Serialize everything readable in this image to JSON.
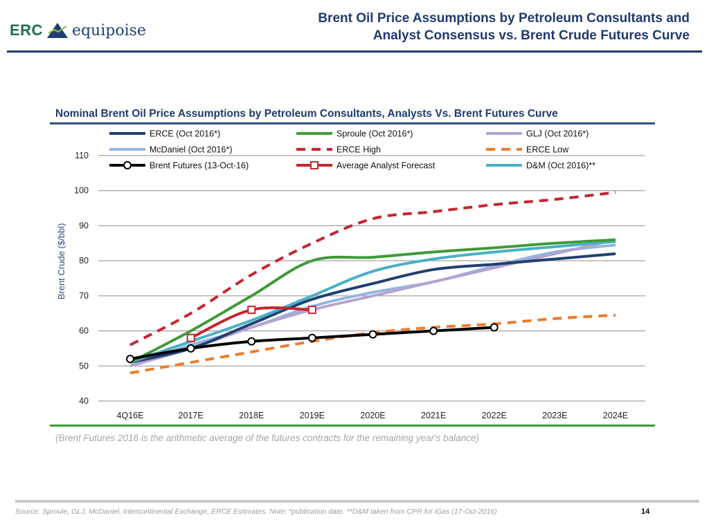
{
  "logo": {
    "erc": "ERC",
    "equipoise": "equipoise"
  },
  "header": {
    "title_line1": "Brent Oil Price Assumptions by Petroleum Consultants and",
    "title_line2": "Analyst Consensus vs. Brent Crude Futures Curve"
  },
  "note": "(Brent Futures 2016 is the arithmetic average of the futures contracts for the remaining year's balance)",
  "footer": {
    "source": "Source: Sproule, GLJ, McDaniel, Intercontinental Exchange, ERCE Estimates. Note: *publication date. **D&M taken from CPR for iGas (17-Oct-2016)",
    "page_number": "14"
  },
  "colors": {
    "brand_navy": "#1f3a6e",
    "brand_green": "#1f6f4a",
    "note_grey": "#a6a6a6"
  },
  "chart_data": {
    "type": "line",
    "title": "Nominal Brent Oil Price Assumptions by Petroleum Consultants, Analysts Vs. Brent Futures Curve",
    "xlabel": "",
    "ylabel": "Brent Crude ($/bbl)",
    "ylim": [
      40,
      110
    ],
    "yticks": [
      40,
      50,
      60,
      70,
      80,
      90,
      100,
      110
    ],
    "grid": true,
    "legend_position": "top",
    "categories": [
      "4Q16E",
      "2017E",
      "2018E",
      "2019E",
      "2020E",
      "2021E",
      "2022E",
      "2023E",
      "2024E"
    ],
    "series": [
      {
        "name": "ERCE (Oct 2016*)",
        "color": "#1f3f6e",
        "dash": "solid",
        "marker": "none",
        "values": [
          51,
          55,
          62,
          69,
          73.5,
          77.5,
          79,
          80.5,
          82
        ]
      },
      {
        "name": "Sproule (Oct 2016*)",
        "color": "#3f9a36",
        "dash": "solid",
        "marker": "none",
        "values": [
          51,
          60,
          70,
          80,
          81,
          82.5,
          83.7,
          85,
          86
        ]
      },
      {
        "name": "GLJ (Oct 2016*)",
        "color": "#b6a2cf",
        "dash": "solid",
        "marker": "none",
        "values": [
          50,
          55,
          61,
          66,
          70,
          74,
          78,
          82,
          86
        ]
      },
      {
        "name": "McDaniel (Oct 2016*)",
        "color": "#93b6e2",
        "dash": "solid",
        "marker": "none",
        "values": [
          50,
          56,
          61,
          67,
          71,
          74,
          78.5,
          82.5,
          84.5
        ]
      },
      {
        "name": "ERCE High",
        "color": "#c4262e",
        "dash": "dashed",
        "marker": "none",
        "values": [
          56,
          65,
          76,
          85,
          92,
          94,
          96,
          97.5,
          99.5
        ]
      },
      {
        "name": "ERCE Low",
        "color": "#ec7d2c",
        "dash": "dashed",
        "marker": "none",
        "values": [
          48,
          51,
          54,
          57,
          59.5,
          61,
          62,
          63.5,
          64.5
        ]
      },
      {
        "name": "Brent Futures (13-Oct-16)",
        "color": "#000000",
        "dash": "solid",
        "marker": "circle",
        "values": [
          52,
          55,
          57,
          58,
          59,
          60,
          61,
          null,
          null
        ]
      },
      {
        "name": "Average Analyst Forecast",
        "color": "#c4262e",
        "dash": "solid",
        "marker": "square",
        "values": [
          null,
          58,
          66,
          66,
          null,
          null,
          null,
          null,
          null
        ]
      },
      {
        "name": "D&M (Oct 2016)**",
        "color": "#4ab0c6",
        "dash": "solid",
        "marker": "none",
        "values": [
          51,
          57,
          63,
          70,
          77,
          80.5,
          82.5,
          84,
          85.5
        ]
      }
    ]
  }
}
